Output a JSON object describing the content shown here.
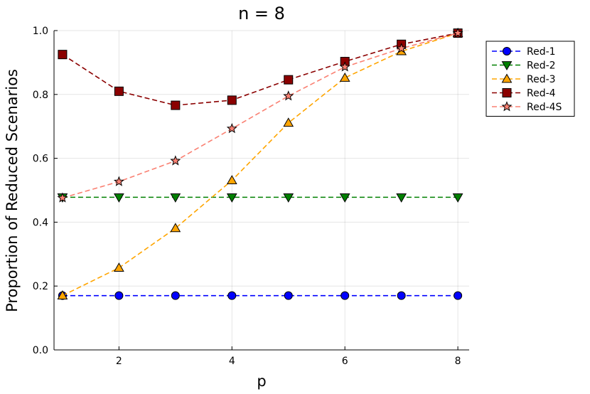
{
  "chart_data": {
    "type": "line",
    "title": "n = 8",
    "xlabel": "p",
    "ylabel": "Proportion of Reduced Scenarios",
    "x": [
      1,
      2,
      3,
      4,
      5,
      6,
      7,
      8
    ],
    "xlim": [
      0.85,
      8.2
    ],
    "ylim": [
      0,
      1.0
    ],
    "xticks": [
      "2",
      "4",
      "6",
      "8"
    ],
    "yticks": [
      "0.0",
      "0.2",
      "0.4",
      "0.6",
      "0.8",
      "1.0"
    ],
    "grid": true,
    "legend_position": "top-right, outside plot",
    "series": [
      {
        "name": "Red-1",
        "color": "#0000ff",
        "marker": "circle",
        "values": [
          0.17,
          0.17,
          0.17,
          0.17,
          0.17,
          0.17,
          0.17,
          0.17
        ]
      },
      {
        "name": "Red-2",
        "color": "#008000",
        "marker": "triangle-down",
        "values": [
          0.478,
          0.478,
          0.478,
          0.478,
          0.478,
          0.478,
          0.478,
          0.478
        ]
      },
      {
        "name": "Red-3",
        "color": "#ffa500",
        "marker": "triangle-up",
        "values": [
          0.17,
          0.257,
          0.381,
          0.531,
          0.711,
          0.852,
          0.935,
          0.992
        ]
      },
      {
        "name": "Red-4",
        "color": "#8b0000",
        "marker": "square",
        "values": [
          0.925,
          0.81,
          0.766,
          0.782,
          0.846,
          0.903,
          0.957,
          0.992
        ]
      },
      {
        "name": "Red-4S",
        "color": "#fa8072",
        "marker": "star",
        "values": [
          0.476,
          0.527,
          0.592,
          0.693,
          0.795,
          0.886,
          0.944,
          0.992
        ]
      }
    ]
  }
}
